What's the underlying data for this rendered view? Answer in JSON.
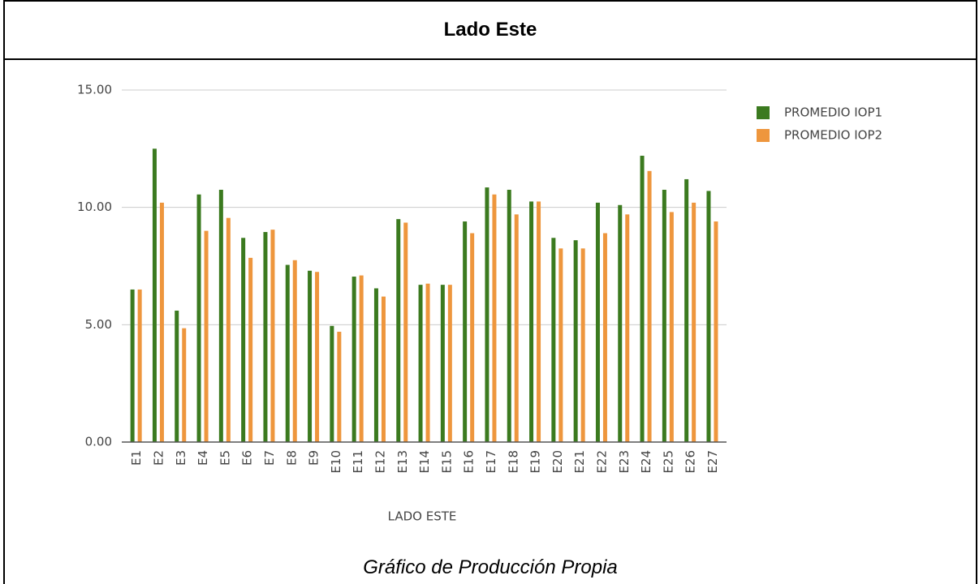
{
  "title": "Lado Este",
  "caption": "Gráfico de Producción Propia",
  "chart_data": {
    "type": "bar",
    "x_label": "LADO ESTE",
    "categories": [
      "E1",
      "E2",
      "E3",
      "E4",
      "E5",
      "E6",
      "E7",
      "E8",
      "E9",
      "E10",
      "E11",
      "E12",
      "E13",
      "E14",
      "E15",
      "E16",
      "E17",
      "E18",
      "E19",
      "E20",
      "E21",
      "E22",
      "E23",
      "E24",
      "E25",
      "E26",
      "E27"
    ],
    "series": [
      {
        "name": "PROMEDIO IOP1",
        "color": "#3b7a1f",
        "values": [
          6.5,
          12.5,
          5.6,
          10.55,
          10.75,
          8.7,
          8.95,
          7.55,
          7.3,
          4.95,
          7.05,
          6.55,
          9.5,
          6.7,
          6.7,
          9.4,
          10.85,
          10.75,
          10.25,
          8.7,
          8.6,
          10.2,
          10.1,
          12.2,
          10.75,
          11.2,
          10.7
        ]
      },
      {
        "name": "PROMEDIO IOP2",
        "color": "#ee963d",
        "values": [
          6.5,
          10.2,
          4.85,
          9.0,
          9.55,
          7.85,
          9.05,
          7.75,
          7.25,
          4.7,
          7.1,
          6.2,
          9.35,
          6.75,
          6.7,
          8.9,
          10.55,
          9.7,
          10.25,
          8.25,
          8.25,
          8.9,
          9.7,
          11.55,
          9.8,
          10.2,
          9.4
        ]
      }
    ],
    "ylim": [
      0,
      15
    ],
    "yticks": [
      {
        "value": 0,
        "label": "0.00"
      },
      {
        "value": 5,
        "label": "5.00"
      },
      {
        "value": 10,
        "label": "10.00"
      },
      {
        "value": 15,
        "label": "15.00"
      }
    ],
    "grid": true,
    "legend": "right"
  }
}
